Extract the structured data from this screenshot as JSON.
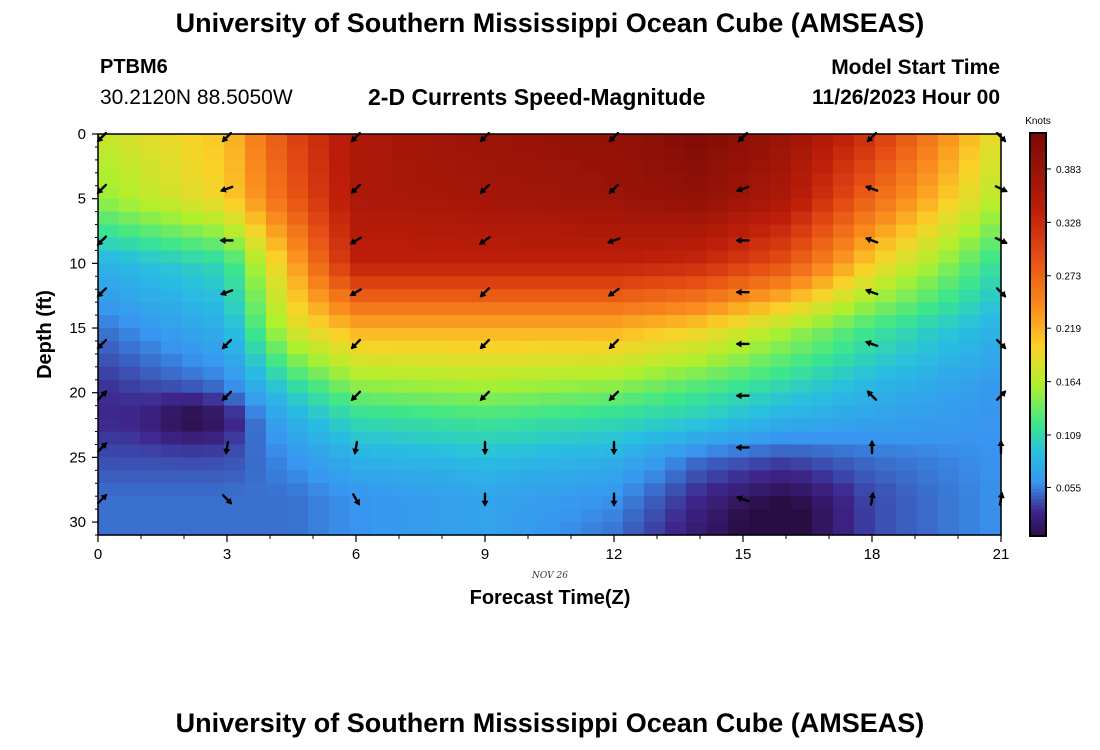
{
  "header": {
    "title": "University of Southern Mississippi Ocean Cube (AMSEAS)",
    "station_id": "PTBM6",
    "coords": "30.2120N  88.5050W",
    "subtitle": "2-D Currents Speed-Magnitude",
    "model_start_label": "Model Start Time",
    "model_start_value": "11/26/2023 Hour 00"
  },
  "footer": {
    "title": "University of Southern Mississippi Ocean Cube (AMSEAS)"
  },
  "chart_data": {
    "type": "heatmap",
    "title": "2-D Currents Speed-Magnitude",
    "xlabel": "Forecast Time(Z)",
    "ylabel": "Depth (ft)",
    "date_label": "NOV 26",
    "xlim": [
      0,
      21
    ],
    "ylim": [
      0,
      31
    ],
    "xticks": [
      0,
      3,
      6,
      9,
      12,
      15,
      18,
      21
    ],
    "yticks": [
      0,
      5,
      10,
      15,
      20,
      25,
      30
    ],
    "colorbar": {
      "label": "Knots",
      "ticks": [
        0.055,
        0.109,
        0.164,
        0.219,
        0.273,
        0.328,
        0.383
      ],
      "range": [
        0.005,
        0.42
      ]
    },
    "arrow_depths": [
      0,
      4,
      8,
      12,
      16,
      20,
      24,
      28
    ],
    "arrow_times": [
      0,
      3,
      6,
      9,
      12,
      15,
      18,
      21
    ],
    "arrow_directions_deg": [
      [
        225,
        225,
        225,
        225,
        225,
        225,
        225,
        315
      ],
      [
        225,
        200,
        225,
        225,
        225,
        200,
        160,
        335
      ],
      [
        225,
        180,
        210,
        215,
        200,
        180,
        160,
        335
      ],
      [
        225,
        200,
        210,
        225,
        215,
        180,
        160,
        315
      ],
      [
        225,
        225,
        225,
        225,
        225,
        180,
        160,
        315
      ],
      [
        45,
        225,
        225,
        225,
        225,
        180,
        135,
        45
      ],
      [
        45,
        260,
        260,
        270,
        270,
        180,
        90,
        90
      ],
      [
        45,
        315,
        300,
        270,
        270,
        160,
        80,
        80
      ]
    ],
    "speed_grid_description": "rows = depth samples 0..30 ft step ~1; columns = forecast hours 0..21 step 0.5",
    "speed_anchor_times": [
      0,
      3,
      4.5,
      6,
      9,
      12,
      14,
      16,
      18,
      21
    ],
    "speed_anchor_depths": [
      0,
      5,
      10,
      15,
      20,
      22,
      25,
      28,
      31
    ],
    "speed_anchor_values": [
      [
        0.17,
        0.21,
        0.3,
        0.36,
        0.38,
        0.39,
        0.41,
        0.38,
        0.32,
        0.18
      ],
      [
        0.15,
        0.2,
        0.28,
        0.36,
        0.37,
        0.38,
        0.39,
        0.36,
        0.27,
        0.16
      ],
      [
        0.08,
        0.11,
        0.22,
        0.34,
        0.34,
        0.34,
        0.33,
        0.29,
        0.2,
        0.11
      ],
      [
        0.05,
        0.08,
        0.18,
        0.22,
        0.22,
        0.22,
        0.2,
        0.16,
        0.12,
        0.08
      ],
      [
        0.03,
        0.05,
        0.1,
        0.14,
        0.15,
        0.14,
        0.12,
        0.1,
        0.08,
        0.06
      ],
      [
        0.03,
        0.03,
        0.08,
        0.11,
        0.12,
        0.11,
        0.1,
        0.08,
        0.07,
        0.06
      ],
      [
        0.04,
        0.04,
        0.06,
        0.08,
        0.09,
        0.08,
        0.05,
        0.04,
        0.05,
        0.06
      ],
      [
        0.05,
        0.05,
        0.05,
        0.06,
        0.07,
        0.06,
        0.03,
        0.01,
        0.04,
        0.06
      ],
      [
        0.05,
        0.05,
        0.05,
        0.06,
        0.07,
        0.05,
        0.02,
        0.01,
        0.04,
        0.06
      ]
    ]
  }
}
